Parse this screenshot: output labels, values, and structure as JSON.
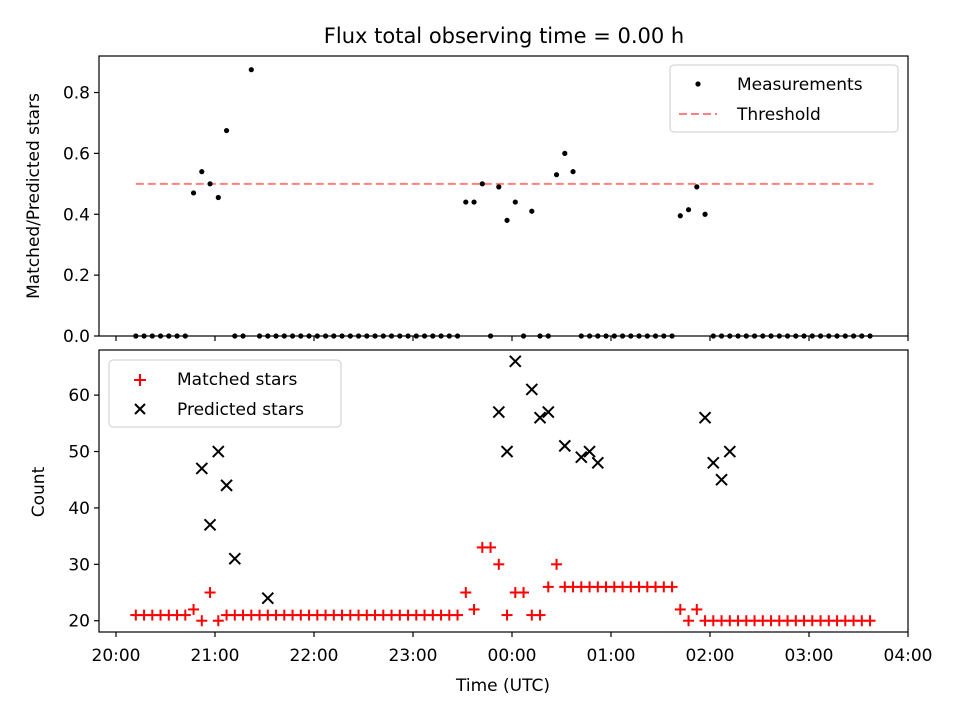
{
  "title": "Flux total observing time = 0.00 h",
  "chart_data": [
    {
      "type": "scatter",
      "name": "ratio-panel",
      "ylabel": "Matched/Predicted stars",
      "ylim": [
        0,
        0.92
      ],
      "yticks": [
        0,
        0.2,
        0.4,
        0.6,
        0.8
      ],
      "ytick_labels": [
        "0.0",
        "0.2",
        "0.4",
        "0.6",
        "0.8"
      ],
      "legend": [
        "Measurements",
        "Threshold"
      ],
      "legend_position": "top-right",
      "threshold": {
        "value": 0.5,
        "x_start": "20:12",
        "x_end": "03:39",
        "color": "#ff8080"
      },
      "series": [
        {
          "name": "Measurements",
          "color": "#000000",
          "x": [
            "20:12",
            "20:17",
            "20:22",
            "20:27",
            "20:32",
            "20:37",
            "20:42",
            "20:47",
            "20:52",
            "20:57",
            "21:02",
            "21:07",
            "21:12",
            "21:17",
            "21:22",
            "21:27",
            "21:32",
            "21:37",
            "21:42",
            "21:47",
            "21:52",
            "21:57",
            "22:02",
            "22:07",
            "22:12",
            "22:17",
            "22:22",
            "22:27",
            "22:32",
            "22:37",
            "22:42",
            "22:47",
            "22:52",
            "22:57",
            "23:02",
            "23:07",
            "23:12",
            "23:17",
            "23:22",
            "23:27",
            "23:32",
            "23:37",
            "23:42",
            "23:47",
            "23:52",
            "23:57",
            "00:02",
            "00:07",
            "00:12",
            "00:17",
            "00:22",
            "00:27",
            "00:32",
            "00:37",
            "00:42",
            "00:47",
            "00:52",
            "00:57",
            "01:02",
            "01:07",
            "01:12",
            "01:17",
            "01:22",
            "01:27",
            "01:32",
            "01:37",
            "01:42",
            "01:47",
            "01:52",
            "01:57",
            "02:02",
            "02:07",
            "02:12",
            "02:17",
            "02:22",
            "02:27",
            "02:32",
            "02:37",
            "02:42",
            "02:47",
            "02:52",
            "02:57",
            "03:02",
            "03:07",
            "03:12",
            "03:17",
            "03:22",
            "03:27",
            "03:32",
            "03:37"
          ],
          "y": [
            0,
            0,
            0,
            0,
            0,
            0,
            0,
            0.47,
            0.54,
            0.5,
            0.455,
            0.675,
            0,
            0,
            0.875,
            0,
            0,
            0,
            0,
            0,
            0,
            0,
            0,
            0,
            0,
            0,
            0,
            0,
            0,
            0,
            0,
            0,
            0,
            0,
            0,
            0,
            0,
            0,
            0,
            0,
            0.44,
            0.44,
            0.5,
            0,
            0.49,
            0.38,
            0.44,
            0,
            0.41,
            0,
            0,
            0.53,
            0.6,
            0.54,
            0,
            0,
            0,
            0,
            0,
            0,
            0,
            0,
            0,
            0,
            0,
            0,
            0.395,
            0.415,
            0.49,
            0.4,
            0,
            0,
            0,
            0,
            0,
            0,
            0,
            0,
            0,
            0,
            0,
            0,
            0,
            0,
            0,
            0,
            0,
            0,
            0,
            0
          ]
        }
      ]
    },
    {
      "type": "scatter",
      "name": "count-panel",
      "ylabel": "Count",
      "xlabel": "Time (UTC)",
      "ylim": [
        18,
        68
      ],
      "yticks": [
        20,
        30,
        40,
        50,
        60
      ],
      "ytick_labels": [
        "20",
        "30",
        "40",
        "50",
        "60"
      ],
      "xticks": [
        "20:00",
        "21:00",
        "22:00",
        "23:00",
        "00:00",
        "01:00",
        "02:00",
        "03:00",
        "04:00"
      ],
      "legend": [
        "Matched stars",
        "Predicted stars"
      ],
      "legend_position": "top-left",
      "series": [
        {
          "name": "Matched stars",
          "marker": "+",
          "color": "#ff0000",
          "x": [
            "20:12",
            "20:17",
            "20:22",
            "20:27",
            "20:32",
            "20:37",
            "20:42",
            "20:47",
            "20:52",
            "20:57",
            "21:02",
            "21:07",
            "21:12",
            "21:17",
            "21:22",
            "21:27",
            "21:32",
            "21:37",
            "21:42",
            "21:47",
            "21:52",
            "21:57",
            "22:02",
            "22:07",
            "22:12",
            "22:17",
            "22:22",
            "22:27",
            "22:32",
            "22:37",
            "22:42",
            "22:47",
            "22:52",
            "22:57",
            "23:02",
            "23:07",
            "23:12",
            "23:17",
            "23:22",
            "23:27",
            "23:32",
            "23:37",
            "23:42",
            "23:47",
            "23:52",
            "23:57",
            "00:02",
            "00:07",
            "00:12",
            "00:17",
            "00:22",
            "00:27",
            "00:32",
            "00:37",
            "00:42",
            "00:47",
            "00:52",
            "00:57",
            "01:02",
            "01:07",
            "01:12",
            "01:17",
            "01:22",
            "01:27",
            "01:32",
            "01:37",
            "01:42",
            "01:47",
            "01:52",
            "01:57",
            "02:02",
            "02:07",
            "02:12",
            "02:17",
            "02:22",
            "02:27",
            "02:32",
            "02:37",
            "02:42",
            "02:47",
            "02:52",
            "02:57",
            "03:02",
            "03:07",
            "03:12",
            "03:17",
            "03:22",
            "03:27",
            "03:32",
            "03:37"
          ],
          "y": [
            21,
            21,
            21,
            21,
            21,
            21,
            21,
            22,
            20,
            25,
            20,
            21,
            21,
            21,
            21,
            21,
            21,
            21,
            21,
            21,
            21,
            21,
            21,
            21,
            21,
            21,
            21,
            21,
            21,
            21,
            21,
            21,
            21,
            21,
            21,
            21,
            21,
            21,
            21,
            21,
            25,
            22,
            33,
            33,
            30,
            21,
            25,
            25,
            21,
            21,
            26,
            30,
            26,
            26,
            26,
            26,
            26,
            26,
            26,
            26,
            26,
            26,
            26,
            26,
            26,
            26,
            22,
            20,
            22,
            20,
            20,
            20,
            20,
            20,
            20,
            20,
            20,
            20,
            20,
            20,
            20,
            20,
            20,
            20,
            20,
            20,
            20,
            20,
            20,
            20
          ]
        },
        {
          "name": "Predicted stars",
          "marker": "x",
          "color": "#000000",
          "x": [
            "20:52",
            "20:57",
            "21:02",
            "21:07",
            "21:12",
            "21:32",
            "23:52",
            "23:57",
            "00:02",
            "00:12",
            "00:17",
            "00:22",
            "00:32",
            "00:42",
            "00:47",
            "00:52",
            "01:57",
            "02:02",
            "02:07",
            "02:12"
          ],
          "y": [
            47,
            37,
            50,
            44,
            31,
            24,
            57,
            50,
            66,
            61,
            56,
            57,
            51,
            49,
            50,
            48,
            56,
            48,
            45,
            50
          ]
        }
      ]
    }
  ]
}
